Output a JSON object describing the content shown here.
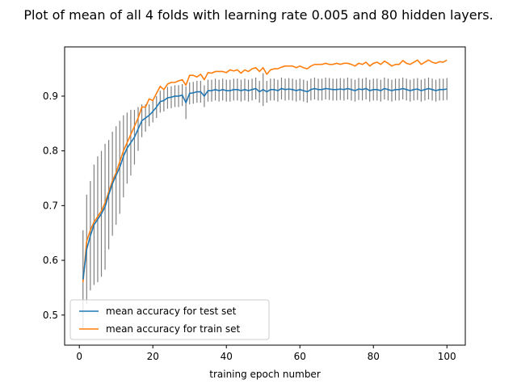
{
  "chart_data": {
    "type": "line",
    "title": "Plot of mean of all 4 folds with learning rate 0.005 and 80 hidden layers.",
    "xlabel": "training epoch number",
    "ylabel": "",
    "xlim": [
      -4.0,
      105.0
    ],
    "ylim": [
      0.445,
      0.99
    ],
    "x_ticks": [
      0,
      20,
      40,
      60,
      80,
      100
    ],
    "y_ticks": [
      0.5,
      0.6,
      0.7,
      0.8,
      0.9
    ],
    "grid": false,
    "legend_position": "lower-left",
    "errorbar_color": "#808080",
    "series": [
      {
        "name": "mean accuracy for test set",
        "color": "#1f77b4",
        "x": [
          1,
          2,
          3,
          4,
          5,
          6,
          7,
          8,
          9,
          10,
          11,
          12,
          13,
          14,
          15,
          16,
          17,
          18,
          19,
          20,
          21,
          22,
          23,
          24,
          25,
          26,
          27,
          28,
          29,
          30,
          31,
          32,
          33,
          34,
          35,
          36,
          37,
          38,
          39,
          40,
          41,
          42,
          43,
          44,
          45,
          46,
          47,
          48,
          49,
          50,
          51,
          52,
          53,
          54,
          55,
          56,
          57,
          58,
          59,
          60,
          61,
          62,
          63,
          64,
          65,
          66,
          67,
          68,
          69,
          70,
          71,
          72,
          73,
          74,
          75,
          76,
          77,
          78,
          79,
          80,
          81,
          82,
          83,
          84,
          85,
          86,
          87,
          88,
          89,
          90,
          91,
          92,
          93,
          94,
          95,
          96,
          97,
          98,
          99,
          100
        ],
        "values": [
          0.565,
          0.62,
          0.645,
          0.665,
          0.675,
          0.685,
          0.698,
          0.72,
          0.74,
          0.755,
          0.77,
          0.79,
          0.805,
          0.815,
          0.825,
          0.84,
          0.855,
          0.86,
          0.865,
          0.872,
          0.88,
          0.89,
          0.892,
          0.897,
          0.898,
          0.9,
          0.9,
          0.902,
          0.888,
          0.905,
          0.906,
          0.908,
          0.908,
          0.9,
          0.91,
          0.91,
          0.912,
          0.91,
          0.912,
          0.91,
          0.91,
          0.912,
          0.912,
          0.91,
          0.912,
          0.91,
          0.912,
          0.914,
          0.908,
          0.912,
          0.908,
          0.912,
          0.912,
          0.91,
          0.914,
          0.912,
          0.913,
          0.912,
          0.91,
          0.912,
          0.91,
          0.908,
          0.912,
          0.914,
          0.912,
          0.912,
          0.914,
          0.913,
          0.912,
          0.912,
          0.913,
          0.912,
          0.914,
          0.912,
          0.91,
          0.913,
          0.912,
          0.914,
          0.91,
          0.912,
          0.912,
          0.91,
          0.914,
          0.912,
          0.91,
          0.912,
          0.912,
          0.914,
          0.912,
          0.91,
          0.912,
          0.913,
          0.91,
          0.912,
          0.914,
          0.912,
          0.91,
          0.912,
          0.912,
          0.913
        ],
        "errors": [
          0.09,
          0.1,
          0.1,
          0.11,
          0.115,
          0.115,
          0.115,
          0.1,
          0.095,
          0.09,
          0.085,
          0.075,
          0.065,
          0.06,
          0.05,
          0.04,
          0.03,
          0.025,
          0.02,
          0.02,
          0.02,
          0.02,
          0.02,
          0.02,
          0.02,
          0.02,
          0.02,
          0.02,
          0.03,
          0.02,
          0.02,
          0.02,
          0.02,
          0.02,
          0.02,
          0.02,
          0.02,
          0.02,
          0.02,
          0.02,
          0.02,
          0.02,
          0.02,
          0.02,
          0.02,
          0.02,
          0.02,
          0.02,
          0.02,
          0.03,
          0.02,
          0.02,
          0.02,
          0.02,
          0.02,
          0.02,
          0.02,
          0.02,
          0.02,
          0.02,
          0.02,
          0.02,
          0.02,
          0.02,
          0.02,
          0.02,
          0.02,
          0.02,
          0.02,
          0.02,
          0.02,
          0.02,
          0.02,
          0.02,
          0.02,
          0.02,
          0.02,
          0.02,
          0.02,
          0.02,
          0.02,
          0.02,
          0.02,
          0.02,
          0.02,
          0.02,
          0.02,
          0.02,
          0.02,
          0.02,
          0.02,
          0.02,
          0.02,
          0.02,
          0.02,
          0.02,
          0.02,
          0.02,
          0.02,
          0.02
        ]
      },
      {
        "name": "mean accuracy for train set",
        "color": "#ff7f0e",
        "x": [
          1,
          2,
          3,
          4,
          5,
          6,
          7,
          8,
          9,
          10,
          11,
          12,
          13,
          14,
          15,
          16,
          17,
          18,
          19,
          20,
          21,
          22,
          23,
          24,
          25,
          26,
          27,
          28,
          29,
          30,
          31,
          32,
          33,
          34,
          35,
          36,
          37,
          38,
          39,
          40,
          41,
          42,
          43,
          44,
          45,
          46,
          47,
          48,
          49,
          50,
          51,
          52,
          53,
          54,
          55,
          56,
          57,
          58,
          59,
          60,
          61,
          62,
          63,
          64,
          65,
          66,
          67,
          68,
          69,
          70,
          71,
          72,
          73,
          74,
          75,
          76,
          77,
          78,
          79,
          80,
          81,
          82,
          83,
          84,
          85,
          86,
          87,
          88,
          89,
          90,
          91,
          92,
          93,
          94,
          95,
          96,
          97,
          98,
          99,
          100
        ],
        "values": [
          0.56,
          0.635,
          0.655,
          0.67,
          0.68,
          0.69,
          0.705,
          0.725,
          0.745,
          0.76,
          0.78,
          0.8,
          0.815,
          0.83,
          0.845,
          0.86,
          0.88,
          0.88,
          0.895,
          0.892,
          0.905,
          0.918,
          0.912,
          0.922,
          0.925,
          0.925,
          0.928,
          0.93,
          0.92,
          0.938,
          0.938,
          0.935,
          0.94,
          0.93,
          0.943,
          0.942,
          0.945,
          0.945,
          0.945,
          0.943,
          0.948,
          0.946,
          0.948,
          0.942,
          0.948,
          0.945,
          0.95,
          0.952,
          0.945,
          0.952,
          0.94,
          0.948,
          0.95,
          0.95,
          0.953,
          0.955,
          0.955,
          0.955,
          0.952,
          0.955,
          0.952,
          0.95,
          0.955,
          0.958,
          0.958,
          0.958,
          0.96,
          0.958,
          0.958,
          0.96,
          0.958,
          0.96,
          0.96,
          0.958,
          0.955,
          0.96,
          0.958,
          0.962,
          0.955,
          0.96,
          0.962,
          0.958,
          0.964,
          0.96,
          0.955,
          0.958,
          0.958,
          0.965,
          0.96,
          0.958,
          0.962,
          0.966,
          0.958,
          0.962,
          0.966,
          0.962,
          0.96,
          0.963,
          0.962,
          0.966
        ]
      }
    ]
  }
}
